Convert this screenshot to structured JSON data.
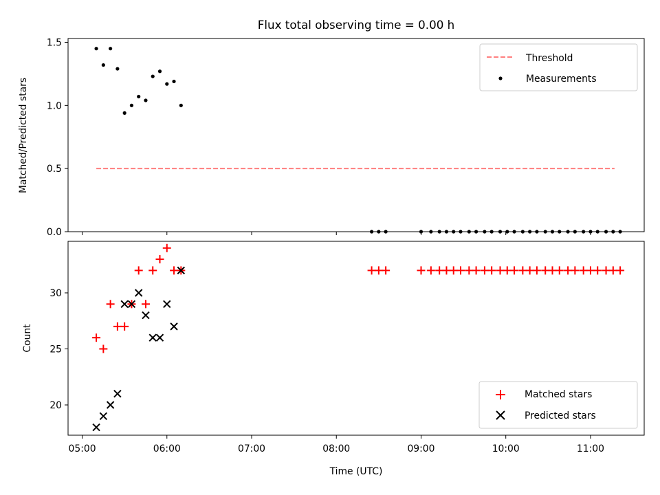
{
  "chart_data": {
    "title": "Flux total observing time = 0.00 h",
    "xlabel": "Time (UTC)",
    "x_ticks": [
      "05:00",
      "06:00",
      "07:00",
      "08:00",
      "09:00",
      "10:00",
      "11:00"
    ],
    "x_range": [
      "04:50",
      "11:38"
    ],
    "colors": {
      "threshold": "#ff7f7f",
      "measurements": "#000000",
      "matched": "#ff0000",
      "predicted": "#000000"
    },
    "panels": [
      {
        "name": "ratio",
        "type": "scatter",
        "ylabel": "Matched/Predicted stars",
        "ylim": [
          0,
          1.53
        ],
        "y_ticks": [
          "0.0",
          "0.5",
          "1.0",
          "1.5"
        ],
        "legend_position": "upper right",
        "threshold": {
          "name": "Threshold",
          "y": 0.5,
          "x_start": "05:10",
          "x_end": "11:17"
        },
        "series": [
          {
            "name": "Measurements",
            "x": [
              "05:10",
              "05:15",
              "05:20",
              "05:25",
              "05:30",
              "05:35",
              "05:40",
              "05:45",
              "05:50",
              "05:55",
              "06:00",
              "06:05",
              "06:10",
              "08:25",
              "08:30",
              "08:35",
              "09:00",
              "09:07",
              "09:13",
              "09:18",
              "09:23",
              "09:28",
              "09:34",
              "09:39",
              "09:45",
              "09:50",
              "09:56",
              "10:01",
              "10:06",
              "10:12",
              "10:17",
              "10:22",
              "10:28",
              "10:33",
              "10:38",
              "10:44",
              "10:49",
              "10:55",
              "11:00",
              "11:05",
              "11:11",
              "11:16",
              "11:21"
            ],
            "y": [
              1.45,
              1.32,
              1.45,
              1.29,
              0.94,
              1.0,
              1.07,
              1.04,
              1.23,
              1.27,
              1.17,
              1.19,
              1.0,
              0,
              0,
              0,
              0,
              0,
              0,
              0,
              0,
              0,
              0,
              0,
              0,
              0,
              0,
              0,
              0,
              0,
              0,
              0,
              0,
              0,
              0,
              0,
              0,
              0,
              0,
              0,
              0,
              0,
              0
            ]
          }
        ]
      },
      {
        "name": "count",
        "type": "scatter",
        "ylabel": "Count",
        "ylim": [
          17.3,
          34.6
        ],
        "y_ticks": [
          "20",
          "25",
          "30"
        ],
        "legend_position": "lower right",
        "series": [
          {
            "name": "Matched stars",
            "marker": "+",
            "x": [
              "05:10",
              "05:15",
              "05:20",
              "05:25",
              "05:30",
              "05:35",
              "05:40",
              "05:45",
              "05:50",
              "05:55",
              "06:00",
              "06:05",
              "06:10",
              "08:25",
              "08:30",
              "08:35",
              "09:00",
              "09:07",
              "09:13",
              "09:18",
              "09:23",
              "09:28",
              "09:34",
              "09:39",
              "09:45",
              "09:50",
              "09:56",
              "10:01",
              "10:06",
              "10:12",
              "10:17",
              "10:22",
              "10:28",
              "10:33",
              "10:38",
              "10:44",
              "10:49",
              "10:55",
              "11:00",
              "11:05",
              "11:11",
              "11:16",
              "11:21"
            ],
            "y": [
              26,
              25,
              29,
              27,
              27,
              29,
              32,
              29,
              32,
              33,
              34,
              32,
              32,
              32,
              32,
              32,
              32,
              32,
              32,
              32,
              32,
              32,
              32,
              32,
              32,
              32,
              32,
              32,
              32,
              32,
              32,
              32,
              32,
              32,
              32,
              32,
              32,
              32,
              32,
              32,
              32,
              32,
              32
            ]
          },
          {
            "name": "Predicted stars",
            "marker": "x",
            "x": [
              "05:10",
              "05:15",
              "05:20",
              "05:25",
              "05:30",
              "05:35",
              "05:40",
              "05:45",
              "05:50",
              "05:55",
              "06:00",
              "06:05",
              "06:10"
            ],
            "y": [
              18,
              19,
              20,
              21,
              29,
              29,
              30,
              28,
              26,
              26,
              29,
              27,
              32
            ]
          }
        ]
      }
    ]
  }
}
